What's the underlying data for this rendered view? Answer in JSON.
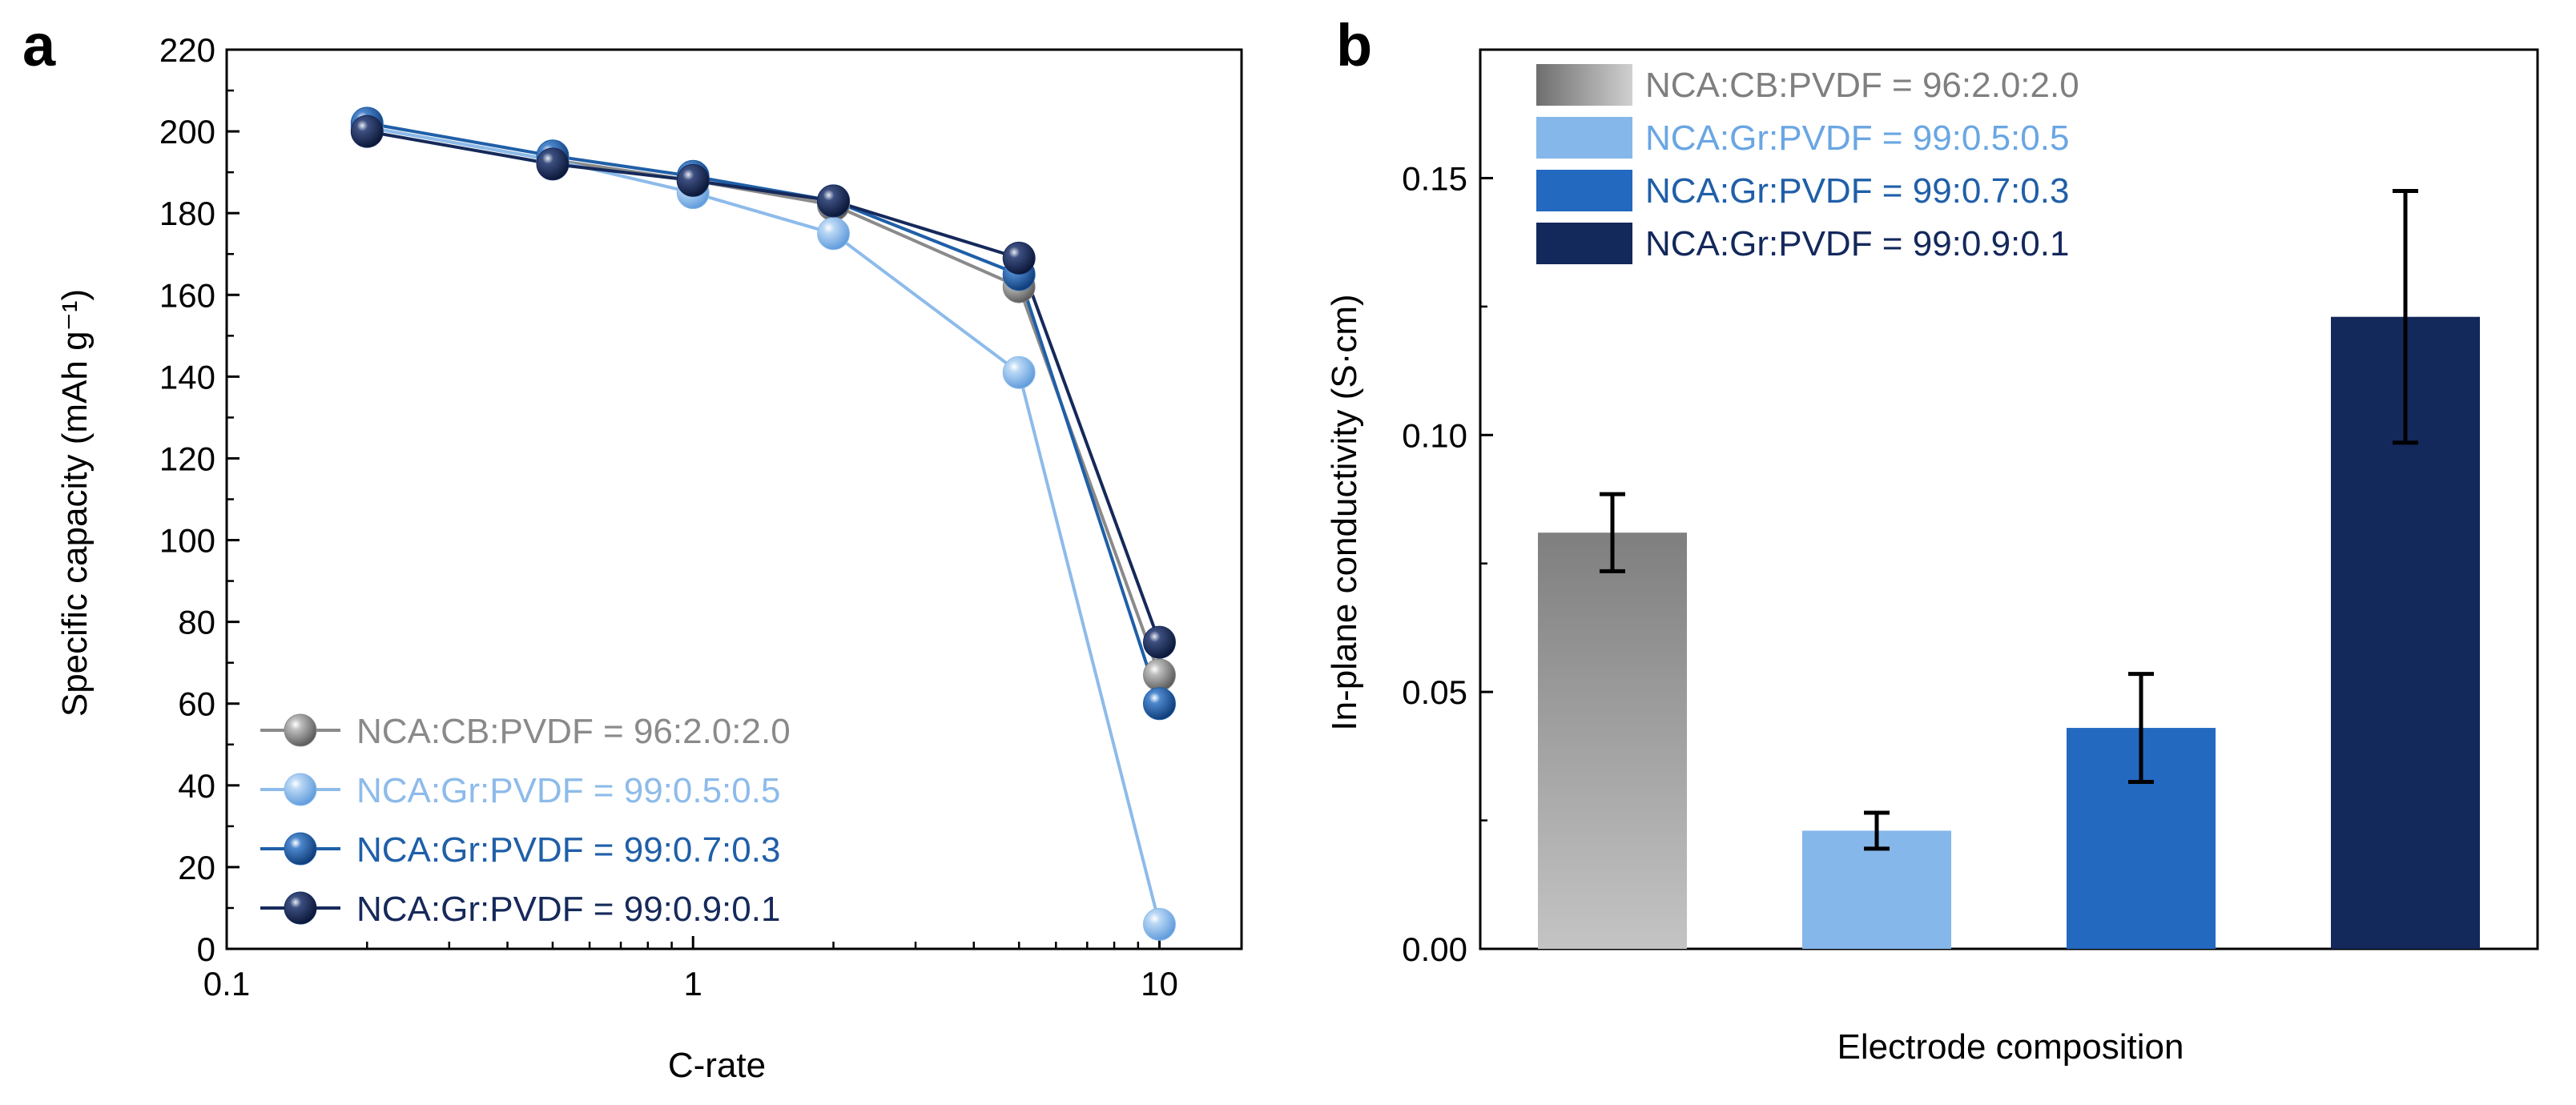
{
  "panel_a_letter": "a",
  "panel_b_letter": "b",
  "chart_data": [
    {
      "type": "line",
      "panel": "a",
      "title": "",
      "xlabel": "C-rate",
      "ylabel": "Specific capacity (mAh g⁻¹)",
      "xscale": "log",
      "xlim": [
        0.1,
        15
      ],
      "ylim": [
        0,
        220
      ],
      "xticks": [
        0.1,
        1,
        10
      ],
      "xtick_labels": [
        "0.1",
        "1",
        "10"
      ],
      "yticks": [
        0,
        20,
        40,
        60,
        80,
        100,
        120,
        140,
        160,
        180,
        200,
        220
      ],
      "ytick_labels": [
        "0",
        "20",
        "40",
        "60",
        "80",
        "100",
        "120",
        "140",
        "160",
        "180",
        "200",
        "220"
      ],
      "grid": false,
      "legend_position": "bottom-left",
      "x": [
        0.2,
        0.5,
        1,
        2,
        5,
        10
      ],
      "series": [
        {
          "name": "NCA:CB:PVDF = 96:2.0:2.0",
          "color": "#8a8a8a",
          "values": [
            201,
            193,
            188,
            182,
            162,
            67
          ]
        },
        {
          "name": "NCA:Gr:PVDF = 99:0.5:0.5",
          "color": "#8dbbea",
          "values": [
            201,
            193,
            185,
            175,
            141,
            6
          ]
        },
        {
          "name": "NCA:Gr:PVDF = 99:0.7:0.3",
          "color": "#1f5fa8",
          "values": [
            202,
            194,
            189,
            183,
            165,
            60
          ]
        },
        {
          "name": "NCA:Gr:PVDF = 99:0.9:0.1",
          "color": "#15295a",
          "values": [
            200,
            192,
            188,
            183,
            169,
            75
          ]
        }
      ]
    },
    {
      "type": "bar",
      "panel": "b",
      "title": "",
      "xlabel": "Electrode composition",
      "ylabel": "In-plane conductivity (S·cm)",
      "ylim": [
        0,
        0.175
      ],
      "yticks": [
        0,
        0.05,
        0.1,
        0.15
      ],
      "ytick_labels": [
        "0.00",
        "0.05",
        "0.10",
        "0.15"
      ],
      "grid": false,
      "legend_position": "top-left",
      "categories": [
        "NCA:CB:PVDF = 96:2.0:2.0",
        "NCA:Gr:PVDF = 99:0.5:0.5",
        "NCA:Gr:PVDF = 99:0.7:0.3",
        "NCA:Gr:PVDF = 99:0.9:0.1"
      ],
      "values": [
        0.081,
        0.023,
        0.043,
        0.123
      ],
      "errors": [
        0.0075,
        0.0035,
        0.0105,
        0.0245
      ],
      "colors": [
        "#7f7f7f",
        "#85b7ea",
        "#2369c0",
        "#13285b"
      ],
      "legend_text_colors": [
        "#7f7f7f",
        "#6aa6e3",
        "#1f5fa8",
        "#13285b"
      ]
    }
  ]
}
